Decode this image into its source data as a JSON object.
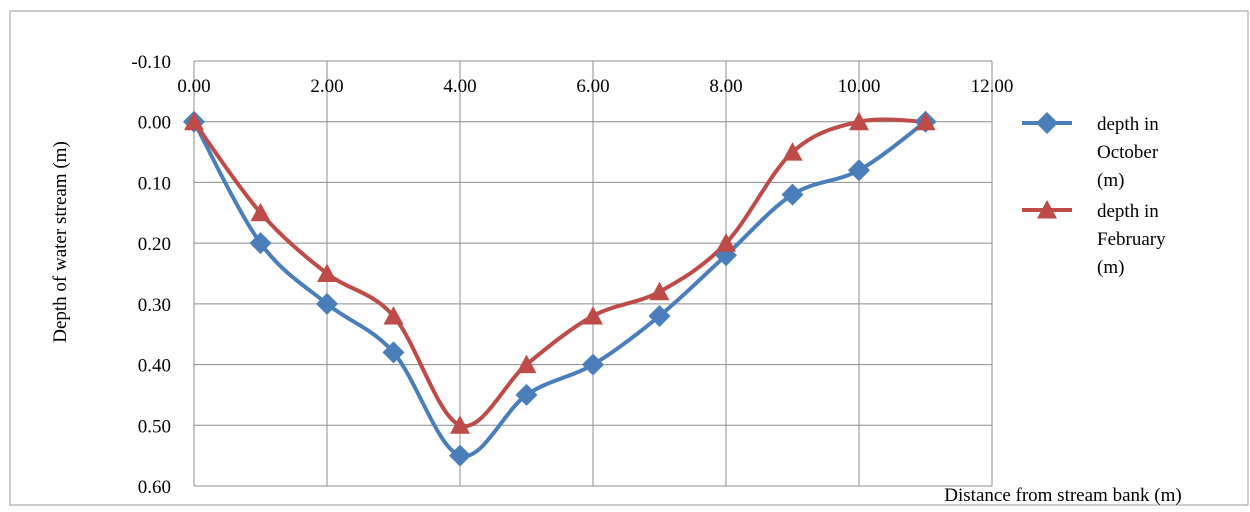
{
  "chart_data": {
    "type": "line",
    "subtype": "smoothed line with markers",
    "title": "",
    "xlabel": "Distance from stream bank (m)",
    "ylabel": "Depth of water stream (m)",
    "xlim": [
      0,
      12
    ],
    "ylim": [
      -0.1,
      0.6
    ],
    "y_axis_reversed": true,
    "x_axis_position": "top",
    "x_ticks": [
      "0.00",
      "2.00",
      "4.00",
      "6.00",
      "8.00",
      "10.00",
      "12.00"
    ],
    "y_ticks": [
      "-0.10",
      "0.00",
      "0.10",
      "0.20",
      "0.30",
      "0.40",
      "0.50",
      "0.60"
    ],
    "grid": true,
    "legend_position": "right",
    "series": [
      {
        "name": "depth in October (m)",
        "legend_lines": [
          "depth in",
          "October",
          "(m)"
        ],
        "color": "#4A7EBB",
        "marker": "diamond",
        "x": [
          0,
          1,
          2,
          3,
          4,
          5,
          6,
          7,
          8,
          9,
          10,
          11
        ],
        "y": [
          0.0,
          0.2,
          0.3,
          0.38,
          0.55,
          0.45,
          0.4,
          0.32,
          0.22,
          0.12,
          0.08,
          0.0
        ]
      },
      {
        "name": "depth in February (m)",
        "legend_lines": [
          "depth in",
          "February",
          "(m)"
        ],
        "color": "#BE4B48",
        "marker": "triangle",
        "x": [
          0,
          1,
          2,
          3,
          4,
          5,
          6,
          7,
          8,
          9,
          10,
          11
        ],
        "y": [
          0.0,
          0.15,
          0.25,
          0.32,
          0.5,
          0.4,
          0.32,
          0.28,
          0.2,
          0.05,
          0.0,
          0.0
        ]
      }
    ]
  }
}
